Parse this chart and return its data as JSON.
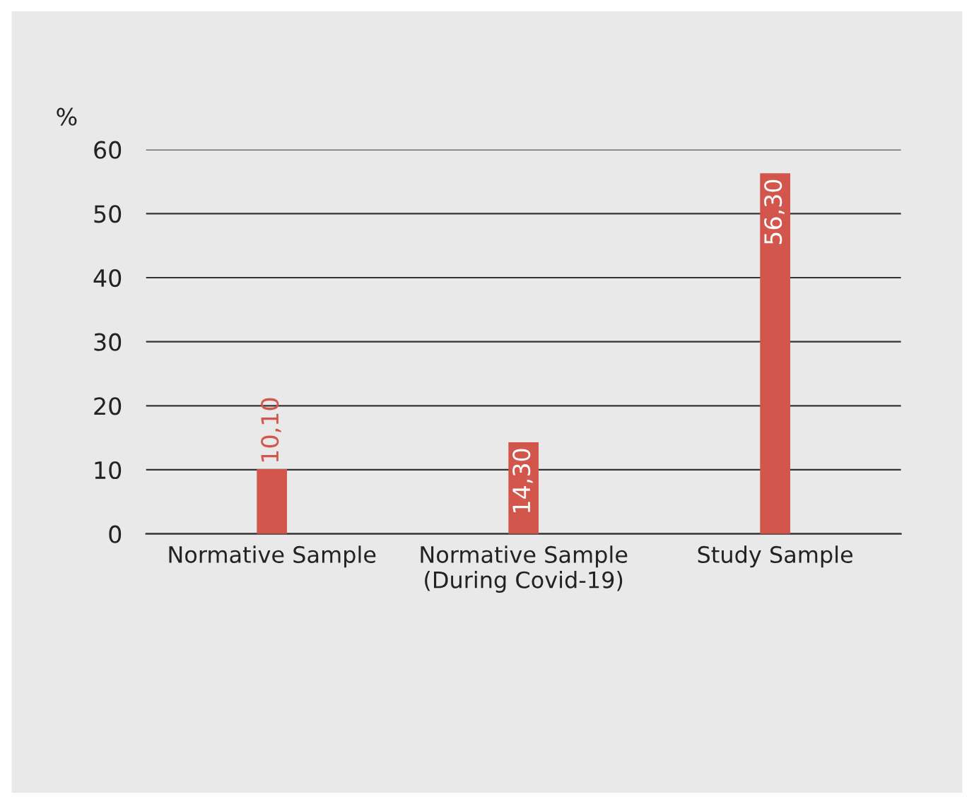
{
  "chart_data": {
    "type": "bar",
    "ylabel": "%",
    "categories": [
      "Normative Sample",
      "Normative Sample\n(During Covid-19)",
      "Study Sample"
    ],
    "values": [
      10.1,
      14.3,
      56.3
    ],
    "value_labels": [
      "10,10",
      "14,30",
      "56,30"
    ],
    "color": "#d2564b",
    "ylim": [
      0,
      60
    ],
    "yticks": [
      0,
      10,
      20,
      30,
      40,
      50,
      60
    ],
    "grid": "y",
    "legend": false
  }
}
